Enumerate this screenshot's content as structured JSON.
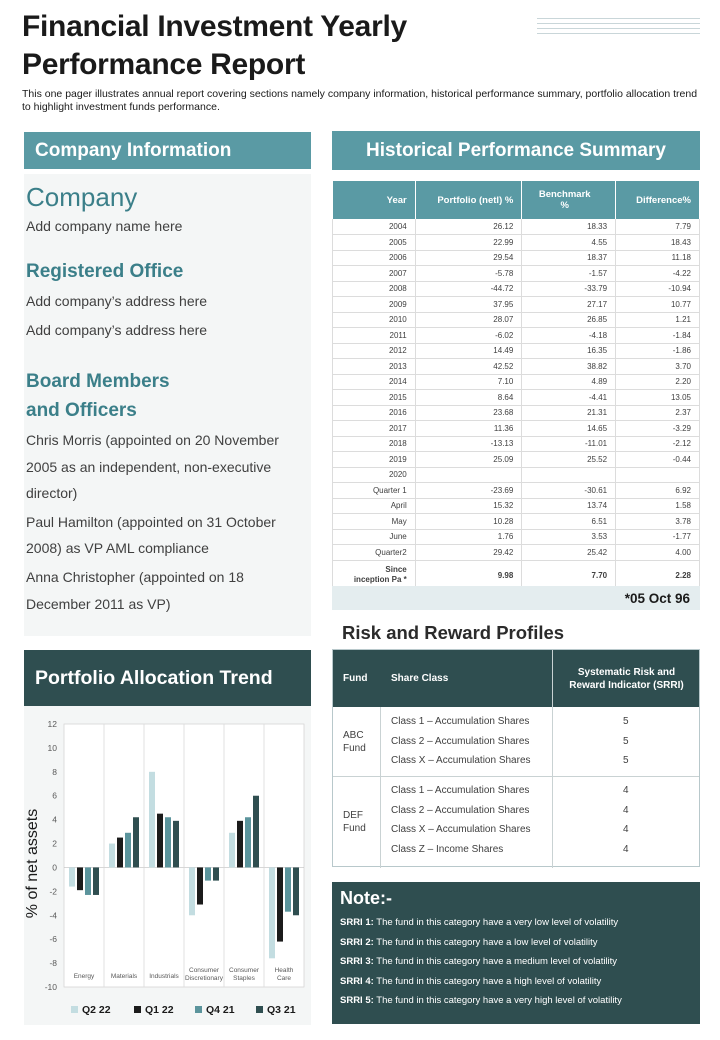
{
  "title_line1": "Financial Investment Yearly",
  "title_line2": "Performance Report",
  "subtitle": "This one pager illustrates annual report covering sections namely company information, historical performance summary, portfolio allocation trend to highlight investment funds performance.",
  "company_info": {
    "header": "Company Information",
    "company_heading": "Company",
    "company_name": "Add company name here",
    "office_heading": "Registered Office",
    "address1": "Add company’s address here",
    "address2": "Add company’s address here",
    "board_heading_1": "Board Members",
    "board_heading_2": "and Officers",
    "members": [
      {
        "l1": "Chris Morris (appointed on 20 November",
        "l2": "2005 as an independent, non-executive",
        "l3": "director)"
      },
      {
        "l1": "Paul Hamilton (appointed on 31 October",
        "l2": "2008) as VP AML compliance"
      },
      {
        "l1": "Anna Christopher (appointed on 18",
        "l2": "December 2011 as VP)"
      }
    ]
  },
  "history": {
    "header": "Historical Performance Summary",
    "columns": [
      "Year",
      "Portfolio (netl) %",
      "Benchmark %",
      "Difference%"
    ],
    "rows": [
      [
        "2004",
        "26.12",
        "18.33",
        "7.79"
      ],
      [
        "2005",
        "22.99",
        "4.55",
        "18.43"
      ],
      [
        "2006",
        "29.54",
        "18.37",
        "11.18"
      ],
      [
        "2007",
        "-5.78",
        "-1.57",
        "-4.22"
      ],
      [
        "2008",
        "-44.72",
        "-33.79",
        "-10.94"
      ],
      [
        "2009",
        "37.95",
        "27.17",
        "10.77"
      ],
      [
        "2010",
        "28.07",
        "26.85",
        "1.21"
      ],
      [
        "2011",
        "-6.02",
        "-4.18",
        "-1.84"
      ],
      [
        "2012",
        "14.49",
        "16.35",
        "-1.86"
      ],
      [
        "2013",
        "42.52",
        "38.82",
        "3.70"
      ],
      [
        "2014",
        "7.10",
        "4.89",
        "2.20"
      ],
      [
        "2015",
        "8.64",
        "-4.41",
        "13.05"
      ],
      [
        "2016",
        "23.68",
        "21.31",
        "2.37"
      ],
      [
        "2017",
        "11.36",
        "14.65",
        "-3.29"
      ],
      [
        "2018",
        "-13.13",
        "-11.01",
        "-2.12"
      ],
      [
        "2019",
        "25.09",
        "25.52",
        "-0.44"
      ],
      [
        "2020",
        "",
        "",
        ""
      ],
      [
        "Quarter 1",
        "-23.69",
        "-30.61",
        "6.92"
      ],
      [
        "April",
        "15.32",
        "13.74",
        "1.58"
      ],
      [
        "May",
        "10.28",
        "6.51",
        "3.78"
      ],
      [
        "June",
        "1.76",
        "3.53",
        "-1.77"
      ],
      [
        "Quarter2",
        "29.42",
        "25.42",
        "4.00"
      ]
    ],
    "since_label_1": "Since",
    "since_label_2": "inception Pa *",
    "since_values": [
      "9.98",
      "7.70",
      "2.28"
    ],
    "footer": "*05 Oct 96"
  },
  "risk": {
    "title": "Risk and Reward Profiles",
    "col_fund": "Fund",
    "col_class": "Share Class",
    "col_srri_1": "Systematic Risk and",
    "col_srri_2": "Reward Indicator (SRRI)",
    "groups": [
      {
        "fund_1": "ABC",
        "fund_2": "Fund",
        "rows": [
          {
            "cls": "Class 1 – Accumulation Shares",
            "srri": "5"
          },
          {
            "cls": "Class 2 – Accumulation Shares",
            "srri": "5"
          },
          {
            "cls": "Class X – Accumulation Shares",
            "srri": "5"
          }
        ]
      },
      {
        "fund_1": "DEF",
        "fund_2": "Fund",
        "rows": [
          {
            "cls": "Class 1 – Accumulation Shares",
            "srri": "4"
          },
          {
            "cls": "Class 2 – Accumulation Shares",
            "srri": "4"
          },
          {
            "cls": "Class X – Accumulation Shares",
            "srri": "4"
          },
          {
            "cls": "Class Z – Income Shares",
            "srri": "4"
          }
        ]
      }
    ]
  },
  "note": {
    "title": "Note:-",
    "lines": [
      {
        "key": "SRRI 1:",
        "text": " The fund in this category have a very low level of volatility"
      },
      {
        "key": "SRRI 2:",
        "text": " The fund in this category have a low level of volatility"
      },
      {
        "key": "SRRI 3:",
        "text": " The fund in this category have a medium  level of volatility"
      },
      {
        "key": "SRRI 4:",
        "text": " The fund in this category have a high level of volatility"
      },
      {
        "key": "SRRI 5:",
        "text": " The fund in this category have a very high level of volatility"
      }
    ]
  },
  "allocation": {
    "header": "Portfolio Allocation Trend"
  },
  "colors": {
    "teal": "#5a9aa4",
    "dark_teal": "#2f4e50",
    "q2_22": "#c3dde1",
    "q1_22": "#1b1b1b",
    "q4_21": "#5b949c",
    "q3_21": "#2f4e50"
  },
  "chart_data": {
    "type": "bar",
    "ylabel": "% of net assets",
    "ylim": [
      -10,
      12
    ],
    "yticks": [
      12,
      10,
      8,
      6,
      4,
      2,
      0,
      -2,
      -4,
      -6,
      -8,
      -10
    ],
    "categories": [
      {
        "l1": "Energy",
        "l2": ""
      },
      {
        "l1": "Materials",
        "l2": ""
      },
      {
        "l1": "Industrials",
        "l2": ""
      },
      {
        "l1": "Consumer",
        "l2": "Discretionary"
      },
      {
        "l1": "Consumer",
        "l2": "Staples"
      },
      {
        "l1": "Health",
        "l2": "Care"
      }
    ],
    "series": [
      {
        "name": "Q2 22",
        "values": [
          -1.6,
          2.0,
          8.0,
          -4.0,
          2.9,
          -7.6
        ]
      },
      {
        "name": "Q1 22",
        "values": [
          -1.9,
          2.5,
          4.5,
          -3.1,
          3.9,
          -6.2
        ]
      },
      {
        "name": "Q4 21",
        "values": [
          -2.3,
          2.9,
          4.2,
          -1.1,
          4.2,
          -3.7
        ]
      },
      {
        "name": "Q3 21",
        "values": [
          -2.3,
          4.2,
          3.9,
          -1.1,
          6.0,
          -4.0
        ]
      }
    ],
    "legend_position": "bottom"
  }
}
